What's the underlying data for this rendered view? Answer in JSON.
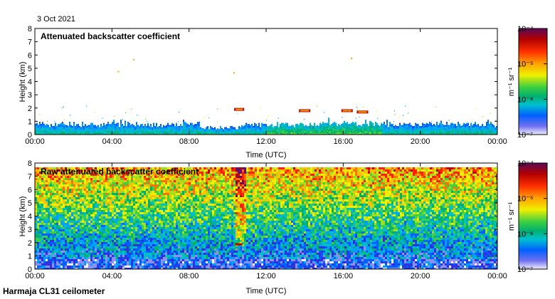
{
  "header": {
    "date": "3 Oct 2021"
  },
  "footer": {
    "instrument": "Harmaja CL31 ceilometer"
  },
  "colorbar": {
    "label": "m⁻¹ sr⁻¹",
    "ticks": [
      "10⁻⁴",
      "10⁻⁵",
      "10⁻⁶",
      "10⁻⁷"
    ],
    "colors": [
      "#6a0a6a",
      "#c00000",
      "#ff2000",
      "#ff9000",
      "#f0f000",
      "#40d040",
      "#00b070",
      "#00c0c0",
      "#0060ff",
      "#3030e0",
      "#ffffff"
    ]
  },
  "chart_data": [
    {
      "type": "heatmap",
      "title": "Attenuated backscatter coefficient",
      "xlabel": "Time (UTC)",
      "ylabel": "Height (km)",
      "xlim": [
        "00:00",
        "24:00"
      ],
      "ylim": [
        0,
        8
      ],
      "x_ticks": [
        "00:00",
        "04:00",
        "08:00",
        "12:00",
        "16:00",
        "20:00",
        "00:00"
      ],
      "y_ticks": [
        "0",
        "1",
        "2",
        "3",
        "4",
        "5",
        "6",
        "7",
        "8"
      ],
      "colorscale": "log",
      "clim": [
        1e-07,
        0.0001
      ],
      "features": [
        {
          "name": "boundary layer",
          "time_start_h": 0,
          "time_end_h": 24,
          "height_top_km": 1.0
        },
        {
          "name": "cloud",
          "time_h": 10.6,
          "height_km": 1.9
        },
        {
          "name": "cloud",
          "time_h": 14.0,
          "height_km": 1.8
        },
        {
          "name": "cloud",
          "time_h": 16.2,
          "height_km": 1.8
        },
        {
          "name": "cloud",
          "time_h": 17.0,
          "height_km": 1.7
        }
      ]
    },
    {
      "type": "heatmap",
      "title": "Raw attenuated backscatter coefficient",
      "xlabel": "Time (UTC)",
      "ylabel": "Height (km)",
      "xlim": [
        "00:00",
        "24:00"
      ],
      "ylim": [
        0,
        8
      ],
      "x_ticks": [
        "00:00",
        "04:00",
        "08:00",
        "12:00",
        "16:00",
        "20:00",
        "00:00"
      ],
      "y_ticks": [
        "0",
        "1",
        "2",
        "3",
        "4",
        "5",
        "6",
        "7",
        "8"
      ],
      "colorscale": "log",
      "clim": [
        1e-07,
        0.0001
      ]
    }
  ]
}
